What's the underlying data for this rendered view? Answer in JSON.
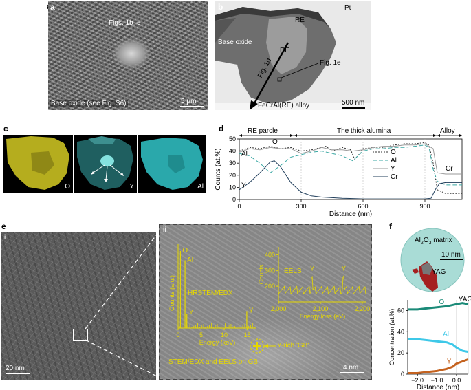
{
  "panels": {
    "a": {
      "letter": "a",
      "box_label": "Figs. 1b–e",
      "caption": "Base oxide (see Fig. S6)",
      "scale": "5 μm"
    },
    "b": {
      "letter": "b",
      "pt": "Pt",
      "re_top": "RE",
      "re_mid": "RE",
      "base_oxide": "Base oxide",
      "fig1d": "Fig. 1d",
      "fig1e": "Fig. 1e",
      "alloy": "FeCrAl(RE) alloy",
      "scale": "500 nm"
    },
    "c": {
      "letter": "c",
      "maps": [
        "O",
        "Y",
        "Al"
      ]
    },
    "d": {
      "letter": "d",
      "regions": [
        "RE parcle",
        "The thick alumina",
        "Alloy"
      ],
      "legend": [
        "O",
        "Al",
        "Y",
        "Cr"
      ],
      "inline_labels": {
        "al": "Al",
        "o": "O",
        "y": "Y",
        "cr": "Cr"
      }
    },
    "e": {
      "letter": "e",
      "sub_i": "i",
      "sub_ii": "ii",
      "scale_i": "20 nm",
      "scale_ii": "4 nm",
      "hrstem_label": "HRSTEM/EDX",
      "eels_label": "EELS",
      "gb_label": "Y-rich 'GB'",
      "method_label": "STEM/EDX and EELS on GB"
    },
    "f": {
      "letter": "f",
      "matrix_label": "Al2O3 matrix",
      "matrix_pre": "Al",
      "matrix_sub1": "2",
      "matrix_mid": "O",
      "matrix_sub2": "3",
      "matrix_post": " matrix",
      "yag": "YAG",
      "yag_region": "YAG",
      "scale": "10 nm",
      "series_labels": {
        "o": "O",
        "al": "Al",
        "y": "Y"
      }
    }
  },
  "chart_data": [
    {
      "id": "d",
      "type": "line",
      "xlabel": "Distance (nm)",
      "ylabel": "Counts (at.%)",
      "xlim": [
        0,
        1080
      ],
      "ylim": [
        0,
        50
      ],
      "xticks": [
        0,
        300,
        600,
        900
      ],
      "yticks": [
        0,
        10,
        20,
        30,
        40,
        50
      ],
      "series": [
        {
          "name": "O",
          "color": "#333333",
          "dash": "2,2",
          "x": [
            0,
            50,
            100,
            150,
            200,
            250,
            300,
            350,
            420,
            450,
            500,
            540,
            560,
            600,
            650,
            700,
            750,
            800,
            850,
            900,
            920,
            940,
            960,
            1000,
            1080
          ],
          "y": [
            40,
            43,
            42,
            44,
            42,
            43,
            40,
            41,
            44,
            40,
            43,
            41,
            33,
            42,
            43,
            43,
            45,
            46,
            46,
            47,
            45,
            30,
            8,
            5,
            5
          ]
        },
        {
          "name": "Al",
          "color": "#3aa7a3",
          "dash": "6,3",
          "x": [
            0,
            50,
            100,
            150,
            200,
            250,
            300,
            350,
            400,
            450,
            500,
            550,
            600,
            650,
            700,
            750,
            800,
            850,
            900,
            920,
            940,
            960,
            1000,
            1080
          ],
          "y": [
            38,
            36,
            30,
            22,
            28,
            35,
            37,
            39,
            40,
            38,
            36,
            32,
            40,
            42,
            42,
            43,
            43,
            44,
            45,
            43,
            25,
            15,
            12,
            12
          ]
        },
        {
          "name": "Y",
          "color": "#999999",
          "dash": "",
          "x": [
            0,
            50,
            100,
            150,
            200,
            250,
            300,
            350,
            400,
            450,
            500,
            550,
            600,
            650,
            700,
            750,
            800,
            850,
            900,
            940,
            960,
            1000,
            1080
          ],
          "y": [
            39,
            42,
            41,
            43,
            42,
            42,
            38,
            40,
            43,
            41,
            41,
            40,
            41,
            43,
            44,
            44,
            45,
            45,
            46,
            42,
            22,
            21,
            21
          ]
        },
        {
          "name": "Cr",
          "color": "#1f3d5a",
          "dash": "",
          "x": [
            0,
            50,
            100,
            150,
            170,
            200,
            250,
            300,
            350,
            400,
            500,
            600,
            700,
            800,
            900,
            930,
            950,
            970,
            1000,
            1080
          ],
          "y": [
            8,
            14,
            22,
            31,
            32,
            27,
            14,
            6,
            3,
            2,
            1,
            0.5,
            0.5,
            0.5,
            0.5,
            1,
            8,
            13,
            14,
            14
          ]
        }
      ]
    },
    {
      "id": "e-ii-edx",
      "type": "bar",
      "xlabel": "Energy (keV)",
      "ylabel": "Counts (a.u.)",
      "xlim": [
        0,
        17
      ],
      "xticks": [
        0,
        5,
        10,
        15
      ],
      "peaks": [
        {
          "label": "O",
          "x": 0.5,
          "h": 1.0
        },
        {
          "label": "Al",
          "x": 1.5,
          "h": 0.88
        },
        {
          "label": "Y",
          "x": 1.9,
          "h": 0.18
        },
        {
          "label": "Y",
          "x": 14.9,
          "h": 0.22
        }
      ]
    },
    {
      "id": "e-ii-eels",
      "type": "line",
      "xlabel": "Energy loss (eV)",
      "ylabel": "Counts",
      "xlim": [
        2000,
        2210
      ],
      "ylim": [
        100,
        450
      ],
      "xticks": [
        2000,
        2100,
        2200
      ],
      "yticks": [
        200,
        300,
        400
      ],
      "edges": [
        {
          "label": "Y",
          "x": 2080
        },
        {
          "label": "Y",
          "x": 2155
        }
      ]
    },
    {
      "id": "f",
      "type": "line",
      "xlabel": "Distance (nm)",
      "ylabel": "Concentration (at.%)",
      "xlim": [
        -2.5,
        0.6
      ],
      "ylim": [
        0,
        70
      ],
      "xticks": [
        -2.0,
        -1.0,
        0.0
      ],
      "yticks": [
        0,
        20,
        40,
        60
      ],
      "series": [
        {
          "name": "O",
          "color": "#1b8a78",
          "x": [
            -2.5,
            -2.0,
            -1.5,
            -1.0,
            -0.5,
            0.0,
            0.3,
            0.6
          ],
          "y": [
            61,
            61,
            62,
            63,
            64,
            66,
            67,
            66
          ]
        },
        {
          "name": "Al",
          "color": "#3ec8e8",
          "x": [
            -2.5,
            -2.0,
            -1.5,
            -1.0,
            -0.5,
            -0.2,
            0.0,
            0.3,
            0.6
          ],
          "y": [
            33,
            33,
            32,
            31,
            30,
            28,
            25,
            22,
            21
          ]
        },
        {
          "name": "Y",
          "color": "#c4621f",
          "x": [
            -2.5,
            -2.0,
            -1.5,
            -1.0,
            -0.5,
            -0.2,
            0.0,
            0.3,
            0.6
          ],
          "y": [
            1,
            1,
            2,
            3,
            5,
            7,
            10,
            12,
            14
          ]
        }
      ]
    }
  ]
}
